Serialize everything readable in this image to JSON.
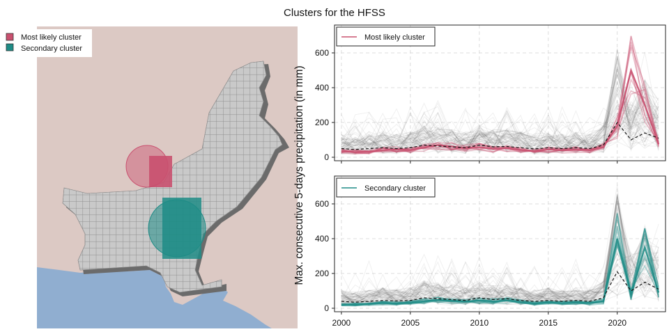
{
  "title": "Clusters for the HFSS",
  "map": {
    "legend": [
      {
        "label": "Most likely cluster",
        "color": "#c9506f"
      },
      {
        "label": "Secondary cluster",
        "color": "#1e8c86"
      }
    ],
    "colors": {
      "land": "#dcc9c4",
      "sea": "#90aed0",
      "country": "#c9c9c9",
      "grid": "#8a8a8a",
      "shadow": "#6b6b6b"
    }
  },
  "ylabel": "Max. consecutive 5-days precipitation (in mm)",
  "chart_data": [
    {
      "type": "line",
      "legend": "Most likely cluster",
      "legend_position": "top-left",
      "grid": true,
      "accent": "#c9506f",
      "xlim": [
        1999.5,
        2023.5
      ],
      "ylim": [
        -20,
        760
      ],
      "x": [
        2000,
        2001,
        2002,
        2003,
        2004,
        2005,
        2006,
        2007,
        2008,
        2009,
        2010,
        2011,
        2012,
        2013,
        2014,
        2015,
        2016,
        2017,
        2018,
        2019,
        2020,
        2021,
        2022,
        2023
      ],
      "yticks": [
        0,
        200,
        400,
        600
      ],
      "xticks": [
        2000,
        2005,
        2010,
        2015,
        2020
      ],
      "series": [
        {
          "name": "Most likely cluster",
          "values": [
            35,
            30,
            32,
            40,
            45,
            42,
            55,
            70,
            62,
            52,
            58,
            48,
            52,
            42,
            35,
            45,
            40,
            45,
            42,
            60,
            180,
            500,
            300,
            75
          ]
        },
        {
          "name": "Mean",
          "values": [
            50,
            45,
            50,
            55,
            50,
            55,
            70,
            65,
            60,
            55,
            70,
            60,
            62,
            55,
            48,
            55,
            50,
            55,
            50,
            70,
            200,
            100,
            140,
            110
          ]
        }
      ]
    },
    {
      "type": "line",
      "legend": "Secondary cluster",
      "legend_position": "top-left",
      "grid": true,
      "accent": "#1e8c86",
      "xlim": [
        1999.5,
        2023.5
      ],
      "ylim": [
        -20,
        760
      ],
      "x": [
        2000,
        2001,
        2002,
        2003,
        2004,
        2005,
        2006,
        2007,
        2008,
        2009,
        2010,
        2011,
        2012,
        2013,
        2014,
        2015,
        2016,
        2017,
        2018,
        2019,
        2020,
        2021,
        2022,
        2023
      ],
      "yticks": [
        0,
        200,
        400,
        600
      ],
      "xticks": [
        2000,
        2005,
        2010,
        2015,
        2020
      ],
      "series": [
        {
          "name": "Secondary cluster",
          "values": [
            20,
            22,
            25,
            30,
            28,
            32,
            40,
            48,
            42,
            38,
            45,
            40,
            45,
            35,
            28,
            32,
            30,
            32,
            30,
            40,
            400,
            80,
            350,
            90
          ]
        },
        {
          "name": "Mean",
          "values": [
            40,
            35,
            40,
            45,
            42,
            45,
            60,
            55,
            50,
            45,
            60,
            50,
            55,
            45,
            40,
            45,
            40,
            45,
            40,
            60,
            210,
            100,
            150,
            110
          ]
        }
      ]
    }
  ]
}
